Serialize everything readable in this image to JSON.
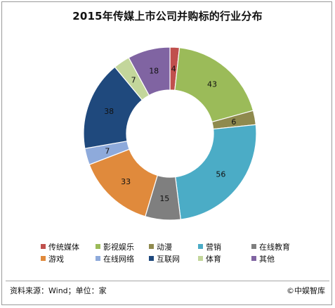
{
  "chart_data": {
    "type": "pie",
    "title": "2015年传媒上市公司并购标的行业分布",
    "categories": [
      "传统媒体",
      "影视娱乐",
      "动漫",
      "营销",
      "在线教育",
      "游戏",
      "在线网络",
      "互联网",
      "体育",
      "其他"
    ],
    "values": [
      4,
      43,
      6,
      56,
      15,
      33,
      7,
      38,
      7,
      18
    ],
    "colors": [
      "#c0504d",
      "#9bbb59",
      "#8f8a4e",
      "#4bacc6",
      "#7f7f7f",
      "#e08a3c",
      "#8eaadb",
      "#1f497d",
      "#c3d69b",
      "#8064a2"
    ],
    "legend_position": "bottom",
    "donut": true
  },
  "footer": {
    "source": "资料来源：Wind；单位：家",
    "brand": "©中娱智库"
  }
}
